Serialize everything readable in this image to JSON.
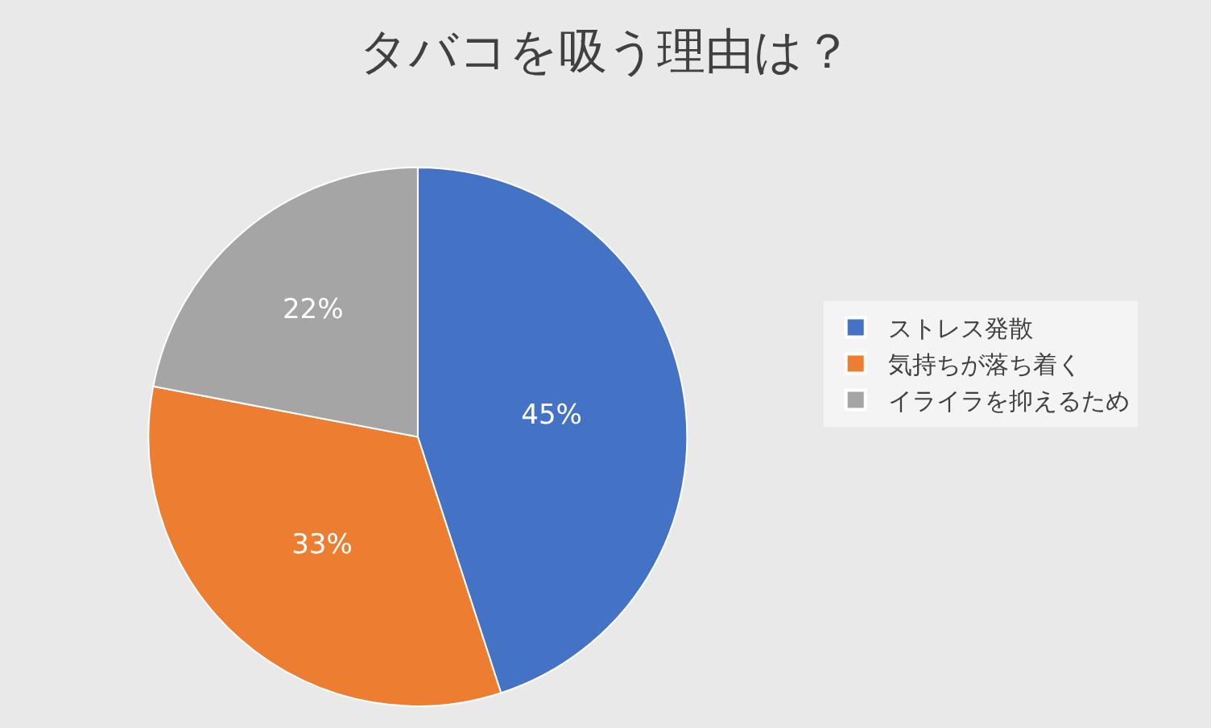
{
  "chart_data": {
    "type": "pie",
    "title": "タバコを吸う理由は？",
    "categories": [
      "ストレス発散",
      "気持ちが落ち着く",
      "イライラを抑えるため"
    ],
    "values": [
      45,
      33,
      22
    ],
    "colors": [
      "#4472c4",
      "#ed7d31",
      "#a5a5a5"
    ],
    "value_labels": [
      "45%",
      "33%",
      "22%"
    ],
    "legend": "right"
  }
}
